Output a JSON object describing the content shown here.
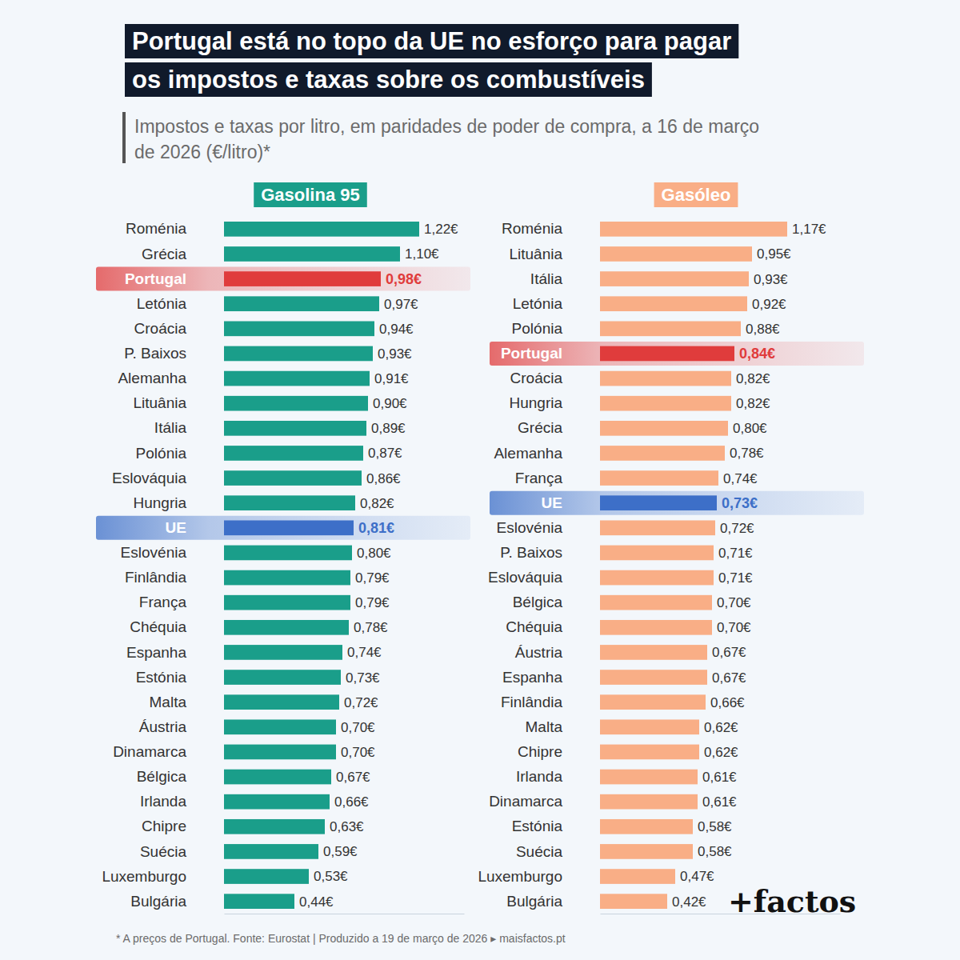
{
  "title": [
    "Portugal está no topo da UE no esforço para pagar",
    "os impostos e taxas sobre os combustíveis"
  ],
  "subtitle": [
    "Impostos e taxas por litro, em paridades de poder de compra, a 16 de março",
    "de 2026 (€/litro)*"
  ],
  "footnote": "* A preços de Portugal. Fonte: Eurostat | Produzido a 19 de março de 2026 ▸ maisfactos.pt",
  "brand": "+factos",
  "chart_data": [
    {
      "type": "bar",
      "orientation": "horizontal",
      "title": "Gasolina 95",
      "categories": [
        "Roménia",
        "Grécia",
        "Portugal",
        "Letónia",
        "Croácia",
        "P. Baixos",
        "Alemanha",
        "Lituânia",
        "Itália",
        "Polónia",
        "Eslováquia",
        "Hungria",
        "UE",
        "Eslovénia",
        "Finlândia",
        "França",
        "Chéquia",
        "Espanha",
        "Estónia",
        "Malta",
        "Áustria",
        "Dinamarca",
        "Bélgica",
        "Irlanda",
        "Chipre",
        "Suécia",
        "Luxemburgo",
        "Bulgária"
      ],
      "values": [
        1.22,
        1.1,
        0.98,
        0.97,
        0.94,
        0.93,
        0.91,
        0.9,
        0.89,
        0.87,
        0.86,
        0.82,
        0.81,
        0.8,
        0.79,
        0.79,
        0.78,
        0.74,
        0.73,
        0.72,
        0.7,
        0.7,
        0.67,
        0.66,
        0.63,
        0.59,
        0.53,
        0.44
      ],
      "value_labels": [
        "1,22€",
        "1,10€",
        "0,98€",
        "0,97€",
        "0,94€",
        "0,93€",
        "0,91€",
        "0,90€",
        "0,89€",
        "0,87€",
        "0,86€",
        "0,82€",
        "0,81€",
        "0,80€",
        "0,79€",
        "0,79€",
        "0,78€",
        "0,74€",
        "0,73€",
        "0,72€",
        "0,70€",
        "0,70€",
        "0,67€",
        "0,66€",
        "0,63€",
        "0,59€",
        "0,53€",
        "0,44€"
      ],
      "color": "#1a9e8a",
      "colors": [
        "#1a9e8a",
        "#1a9e8a",
        "#e03c3c",
        "#1a9e8a",
        "#1a9e8a",
        "#1a9e8a",
        "#1a9e8a",
        "#1a9e8a",
        "#1a9e8a",
        "#1a9e8a",
        "#1a9e8a",
        "#1a9e8a",
        "#3d6fc8",
        "#1a9e8a",
        "#1a9e8a",
        "#1a9e8a",
        "#1a9e8a",
        "#1a9e8a",
        "#1a9e8a",
        "#1a9e8a",
        "#1a9e8a",
        "#1a9e8a",
        "#1a9e8a",
        "#1a9e8a",
        "#1a9e8a",
        "#1a9e8a",
        "#1a9e8a",
        "#1a9e8a"
      ],
      "xlim": [
        0,
        1.5
      ],
      "data_labels": true,
      "tick_labels": "y",
      "grid": false
    },
    {
      "type": "bar",
      "orientation": "horizontal",
      "title": "Gasóleo",
      "categories": [
        "Roménia",
        "Lituânia",
        "Itália",
        "Letónia",
        "Polónia",
        "Portugal",
        "Croácia",
        "Hungria",
        "Grécia",
        "Alemanha",
        "França",
        "UE",
        "Eslovénia",
        "P. Baixos",
        "Eslováquia",
        "Bélgica",
        "Chéquia",
        "Áustria",
        "Espanha",
        "Finlândia",
        "Malta",
        "Chipre",
        "Irlanda",
        "Dinamarca",
        "Estónia",
        "Suécia",
        "Luxemburgo",
        "Bulgária"
      ],
      "values": [
        1.17,
        0.95,
        0.93,
        0.92,
        0.88,
        0.84,
        0.82,
        0.82,
        0.8,
        0.78,
        0.74,
        0.73,
        0.72,
        0.71,
        0.71,
        0.7,
        0.7,
        0.67,
        0.67,
        0.66,
        0.62,
        0.62,
        0.61,
        0.61,
        0.58,
        0.58,
        0.47,
        0.42
      ],
      "value_labels": [
        "1,17€",
        "0,95€",
        "0,93€",
        "0,92€",
        "0,88€",
        "0,84€",
        "0,82€",
        "0,82€",
        "0,80€",
        "0,78€",
        "0,74€",
        "0,73€",
        "0,72€",
        "0,71€",
        "0,71€",
        "0,70€",
        "0,70€",
        "0,67€",
        "0,67€",
        "0,66€",
        "0,62€",
        "0,62€",
        "0,61€",
        "0,61€",
        "0,58€",
        "0,58€",
        "0,47€",
        "0,42€"
      ],
      "color": "#f9ae86",
      "colors": [
        "#f9ae86",
        "#f9ae86",
        "#f9ae86",
        "#f9ae86",
        "#f9ae86",
        "#e03c3c",
        "#f9ae86",
        "#f9ae86",
        "#f9ae86",
        "#f9ae86",
        "#f9ae86",
        "#3d6fc8",
        "#f9ae86",
        "#f9ae86",
        "#f9ae86",
        "#f9ae86",
        "#f9ae86",
        "#f9ae86",
        "#f9ae86",
        "#f9ae86",
        "#f9ae86",
        "#f9ae86",
        "#f9ae86",
        "#f9ae86",
        "#f9ae86",
        "#f9ae86",
        "#f9ae86",
        "#f9ae86"
      ],
      "xlim": [
        0,
        1.5
      ],
      "data_labels": true,
      "tick_labels": "y",
      "grid": false
    }
  ]
}
